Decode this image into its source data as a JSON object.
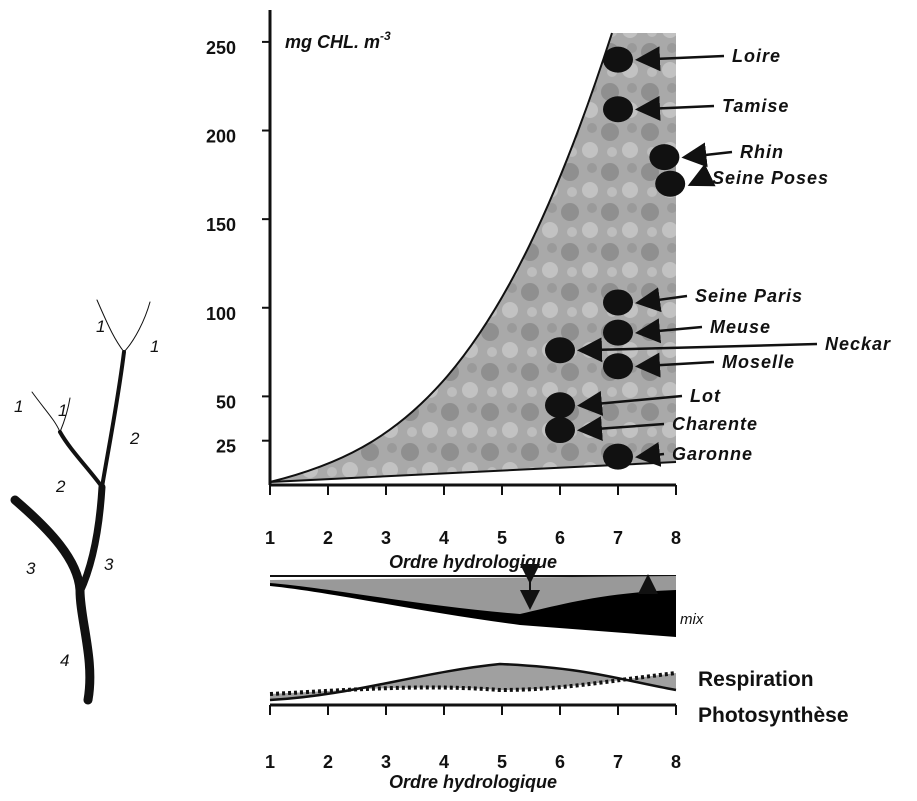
{
  "chart_data": [
    {
      "type": "scatter",
      "y_label": "mg CHL. m",
      "y_label_sup": "-3",
      "x_label": "Ordre hydrologique",
      "xlim": [
        1,
        8
      ],
      "xticks": [
        1,
        2,
        3,
        4,
        5,
        6,
        7,
        8
      ],
      "ylim": [
        0,
        268
      ],
      "yticks": [
        25,
        50,
        100,
        150,
        200,
        250
      ],
      "color": "#111111",
      "labels": [
        "Loire",
        "Tamise",
        "Rhin",
        "Seine Poses",
        "Seine Paris",
        "Meuse",
        "Neckar",
        "Moselle",
        "Lot",
        "Charente",
        "Garonne"
      ],
      "x": [
        7,
        7,
        7.8,
        7.9,
        7,
        7,
        6,
        7,
        6,
        6,
        7
      ],
      "values": [
        240,
        212,
        185,
        170,
        103,
        86,
        76,
        67,
        45,
        31,
        16
      ]
    },
    {
      "type": "diagram",
      "x_label": "Ordre hydrologique",
      "xlim": [
        1,
        8
      ],
      "xticks": [
        1,
        2,
        3,
        4,
        5,
        6,
        7,
        8
      ],
      "mix_label": "mix",
      "legend": [
        "Respiration",
        "Photosynthèse"
      ]
    }
  ],
  "tree": {
    "labels": [
      "1",
      "1",
      "1",
      "1",
      "2",
      "2",
      "3",
      "3",
      "4"
    ]
  }
}
